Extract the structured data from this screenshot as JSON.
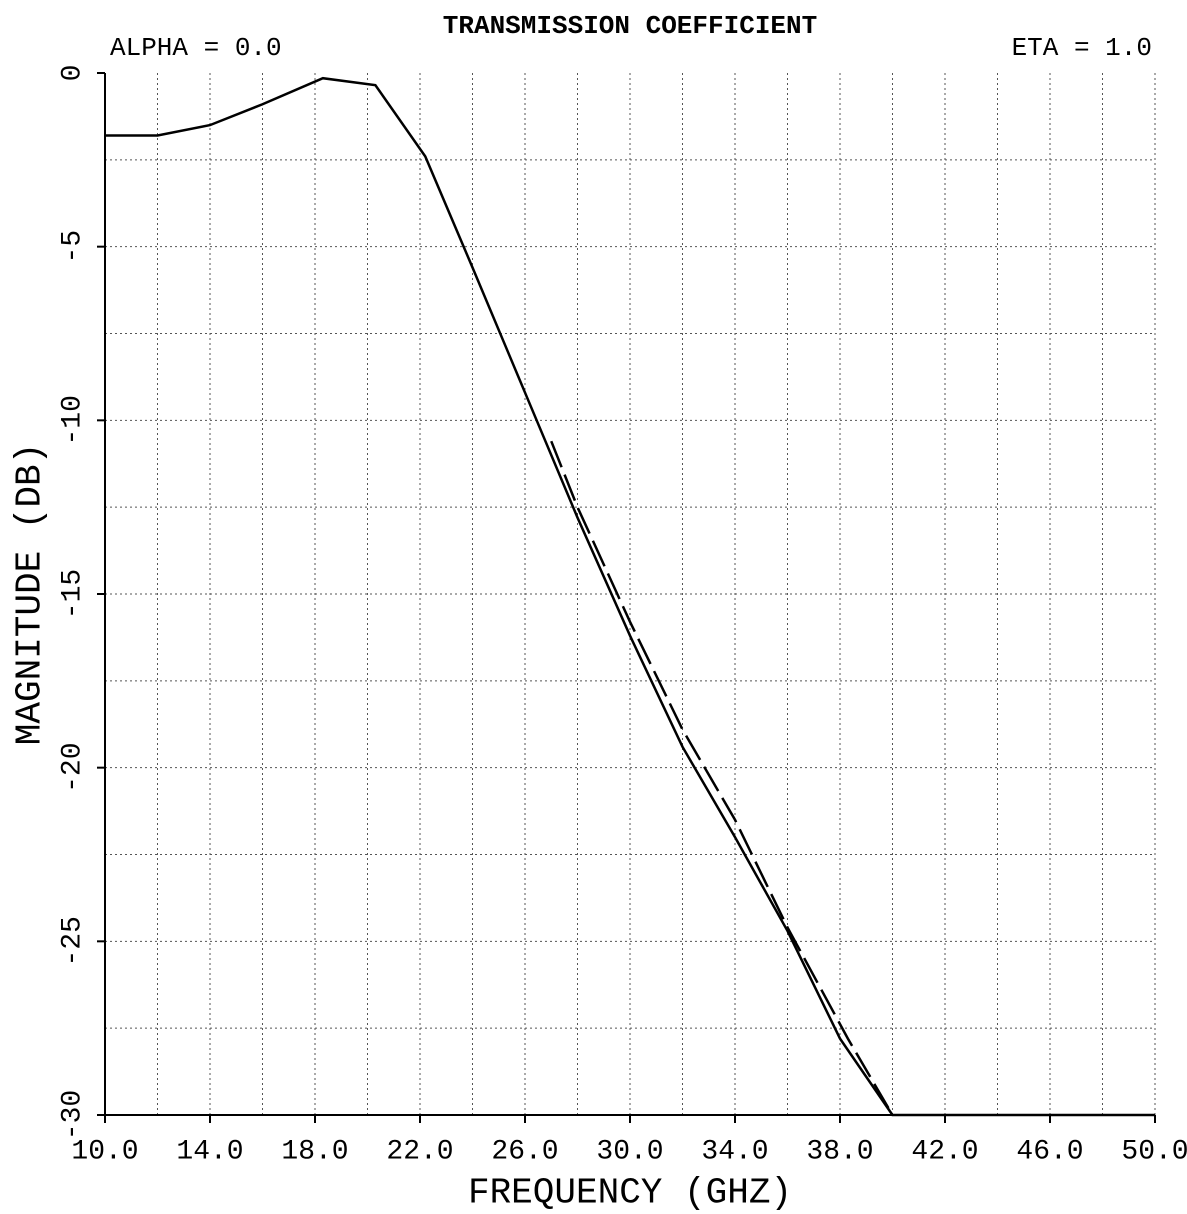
{
  "chart_data": {
    "type": "line",
    "title": "TRANSMISSION COEFFICIENT",
    "annotations": [
      "ALPHA = 0.0",
      "ETA = 1.0"
    ],
    "xlabel": "FREQUENCY (GHZ)",
    "ylabel": "MAGNITUDE (DB)",
    "xlim": [
      10,
      50
    ],
    "ylim": [
      -30,
      0
    ],
    "xticks": [
      {
        "value": 10,
        "label": "10.0"
      },
      {
        "value": 14,
        "label": "14.0"
      },
      {
        "value": 18,
        "label": "18.0"
      },
      {
        "value": 22,
        "label": "22.0"
      },
      {
        "value": 26,
        "label": "26.0"
      },
      {
        "value": 30,
        "label": "30.0"
      },
      {
        "value": 34,
        "label": "34.0"
      },
      {
        "value": 38,
        "label": "38.0"
      },
      {
        "value": 42,
        "label": "42.0"
      },
      {
        "value": 46,
        "label": "46.0"
      },
      {
        "value": 50,
        "label": "50.0"
      }
    ],
    "yticks": [
      0,
      -5,
      -10,
      -15,
      -20,
      -25,
      -30
    ],
    "xgrid": [
      12,
      14,
      16,
      18,
      20,
      22,
      24,
      26,
      28,
      30,
      32,
      34,
      36,
      38,
      40,
      42,
      44,
      46,
      48,
      50
    ],
    "ygrid": [
      -2.5,
      -5,
      -7.5,
      -10,
      -12.5,
      -15,
      -17.5,
      -20,
      -22.5,
      -25,
      -27.5
    ],
    "series": [
      {
        "color": "#000000",
        "dash": false,
        "x": [
          10,
          12,
          14,
          16,
          18.3,
          20.3,
          22.2,
          24,
          26,
          28,
          30,
          32,
          34,
          36,
          38,
          40,
          50
        ],
        "values": [
          -1.8,
          -1.8,
          -1.5,
          -0.9,
          -0.15,
          -0.35,
          -2.4,
          -5.6,
          -9.2,
          -12.8,
          -16.2,
          -19.4,
          -22,
          -24.7,
          -27.8,
          -30,
          -30
        ]
      },
      {
        "color": "#000000",
        "dash": true,
        "x": [
          27,
          28,
          30,
          32,
          34,
          36,
          38.3,
          40
        ],
        "values": [
          -10.6,
          -12.5,
          -15.8,
          -18.9,
          -21.5,
          -24.6,
          -27.8,
          -30
        ]
      }
    ]
  }
}
